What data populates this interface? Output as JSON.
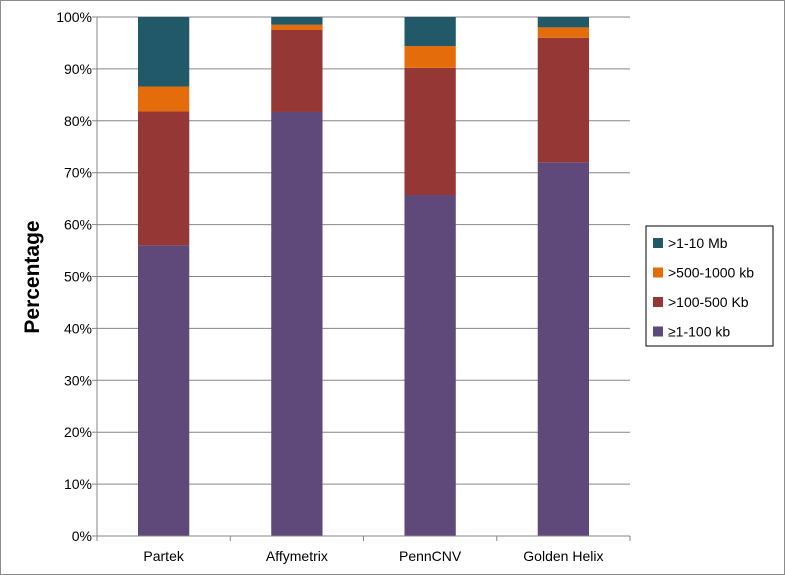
{
  "chart_data": {
    "type": "bar",
    "stacked": true,
    "percent": true,
    "title": "",
    "xlabel": "",
    "ylabel": "Percentage",
    "ylim": [
      0,
      100
    ],
    "yticks": [
      "0%",
      "10%",
      "20%",
      "30%",
      "40%",
      "50%",
      "60%",
      "70%",
      "80%",
      "90%",
      "100%"
    ],
    "grid": true,
    "legend_position": "right",
    "categories": [
      "Partek",
      "Affymetrix",
      "PennCNV",
      "Golden Helix"
    ],
    "series": [
      {
        "name": "≥1-100 kb",
        "color": "#5f497a",
        "values": [
          56,
          81.7,
          65.7,
          72
        ]
      },
      {
        "name": ">100-500 Kb",
        "color": "#953735",
        "values": [
          25.8,
          15.8,
          24.5,
          24
        ]
      },
      {
        "name": ">500-1000 kb",
        "color": "#e46c0a",
        "values": [
          4.8,
          1,
          4.2,
          2
        ]
      },
      {
        "name": ">1-10 Mb",
        "color": "#215968",
        "values": [
          13.4,
          1.5,
          5.6,
          2
        ]
      }
    ],
    "legend_order": [
      3,
      2,
      1,
      0
    ]
  }
}
